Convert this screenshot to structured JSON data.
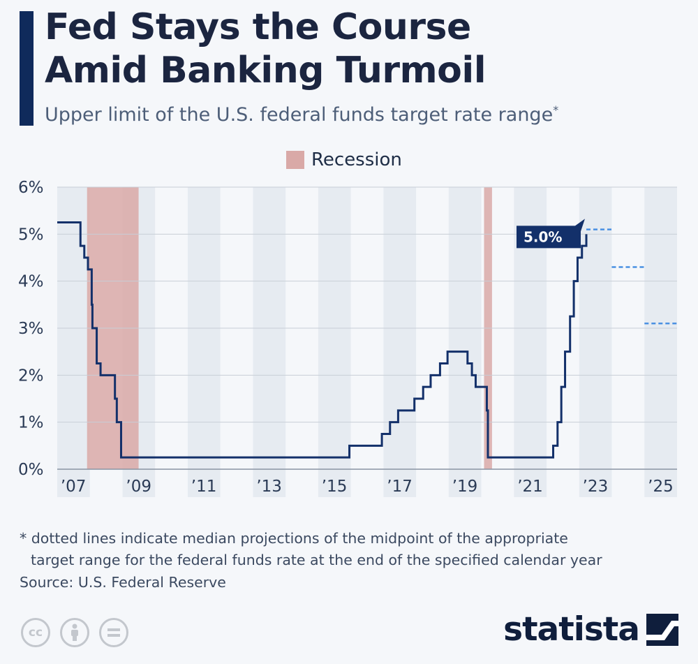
{
  "header": {
    "title_line1": "Fed Stays the Course",
    "title_line2": "Amid Banking Turmoil",
    "subtitle": "Upper limit of the U.S. federal funds target rate range",
    "subtitle_marker": "*"
  },
  "legend": {
    "label": "Recession",
    "color": "#d9a9a7"
  },
  "footer": {
    "footnote_line1": "* dotted lines indicate median projections of the midpoint of the appropriate",
    "footnote_line2": "target range for the federal funds rate at the end of the specified calendar year",
    "source": "Source: U.S. Federal Reserve",
    "brand": "statista"
  },
  "colors": {
    "line": "#13306a",
    "projection": "#4a90e2",
    "recession": "#d9a9a7",
    "band": "#e6ebf1",
    "grid": "#c8ced6"
  },
  "chart_data": {
    "type": "line",
    "title": "Fed Stays the Course Amid Banking Turmoil",
    "ylabel": "Upper limit of the U.S. federal funds target rate range",
    "xlim": [
      "2007-01-01",
      "2026-01-01"
    ],
    "ylim": [
      0,
      6
    ],
    "y_ticks": [
      "0%",
      "1%",
      "2%",
      "3%",
      "4%",
      "5%",
      "6%"
    ],
    "x_ticks": [
      {
        "date": "2007-07-01",
        "label": "’07"
      },
      {
        "date": "2009-07-01",
        "label": "’09"
      },
      {
        "date": "2011-07-01",
        "label": "’11"
      },
      {
        "date": "2013-07-01",
        "label": "’13"
      },
      {
        "date": "2015-07-01",
        "label": "’15"
      },
      {
        "date": "2017-07-01",
        "label": "’17"
      },
      {
        "date": "2019-07-01",
        "label": "’19"
      },
      {
        "date": "2021-07-01",
        "label": "’21"
      },
      {
        "date": "2023-07-01",
        "label": "’23"
      },
      {
        "date": "2025-07-01",
        "label": "’25"
      }
    ],
    "recessions": [
      {
        "start": "2007-12-01",
        "end": "2009-06-30"
      },
      {
        "start": "2020-02-01",
        "end": "2020-04-30"
      }
    ],
    "series": [
      {
        "step": true,
        "points": [
          {
            "x": "2007-01-01",
            "y": 5.25
          },
          {
            "x": "2007-09-18",
            "y": 4.75
          },
          {
            "x": "2007-10-31",
            "y": 4.5
          },
          {
            "x": "2007-12-11",
            "y": 4.25
          },
          {
            "x": "2008-01-22",
            "y": 3.5
          },
          {
            "x": "2008-01-30",
            "y": 3.0
          },
          {
            "x": "2008-03-18",
            "y": 2.25
          },
          {
            "x": "2008-04-30",
            "y": 2.0
          },
          {
            "x": "2008-10-08",
            "y": 1.5
          },
          {
            "x": "2008-10-29",
            "y": 1.0
          },
          {
            "x": "2008-12-16",
            "y": 0.25
          },
          {
            "x": "2015-12-16",
            "y": 0.5
          },
          {
            "x": "2016-12-14",
            "y": 0.75
          },
          {
            "x": "2017-03-15",
            "y": 1.0
          },
          {
            "x": "2017-06-14",
            "y": 1.25
          },
          {
            "x": "2017-12-13",
            "y": 1.5
          },
          {
            "x": "2018-03-21",
            "y": 1.75
          },
          {
            "x": "2018-06-13",
            "y": 2.0
          },
          {
            "x": "2018-09-26",
            "y": 2.25
          },
          {
            "x": "2018-12-19",
            "y": 2.5
          },
          {
            "x": "2019-07-31",
            "y": 2.25
          },
          {
            "x": "2019-09-18",
            "y": 2.0
          },
          {
            "x": "2019-10-30",
            "y": 1.75
          },
          {
            "x": "2020-03-03",
            "y": 1.25
          },
          {
            "x": "2020-03-15",
            "y": 0.25
          },
          {
            "x": "2022-03-16",
            "y": 0.5
          },
          {
            "x": "2022-05-04",
            "y": 1.0
          },
          {
            "x": "2022-06-15",
            "y": 1.75
          },
          {
            "x": "2022-07-27",
            "y": 2.5
          },
          {
            "x": "2022-09-21",
            "y": 3.25
          },
          {
            "x": "2022-11-02",
            "y": 4.0
          },
          {
            "x": "2022-12-14",
            "y": 4.5
          },
          {
            "x": "2023-02-01",
            "y": 4.75
          },
          {
            "x": "2023-03-22",
            "y": 5.0
          }
        ]
      }
    ],
    "annotation": {
      "date": "2023-03-22",
      "value": 5.0,
      "label": "5.0%"
    },
    "projections": [
      {
        "start": "2023-03-22",
        "end": "2023-12-31",
        "y": 5.1
      },
      {
        "start": "2024-01-01",
        "end": "2024-12-31",
        "y": 4.3
      },
      {
        "start": "2025-01-01",
        "end": "2025-12-31",
        "y": 3.1
      }
    ]
  }
}
